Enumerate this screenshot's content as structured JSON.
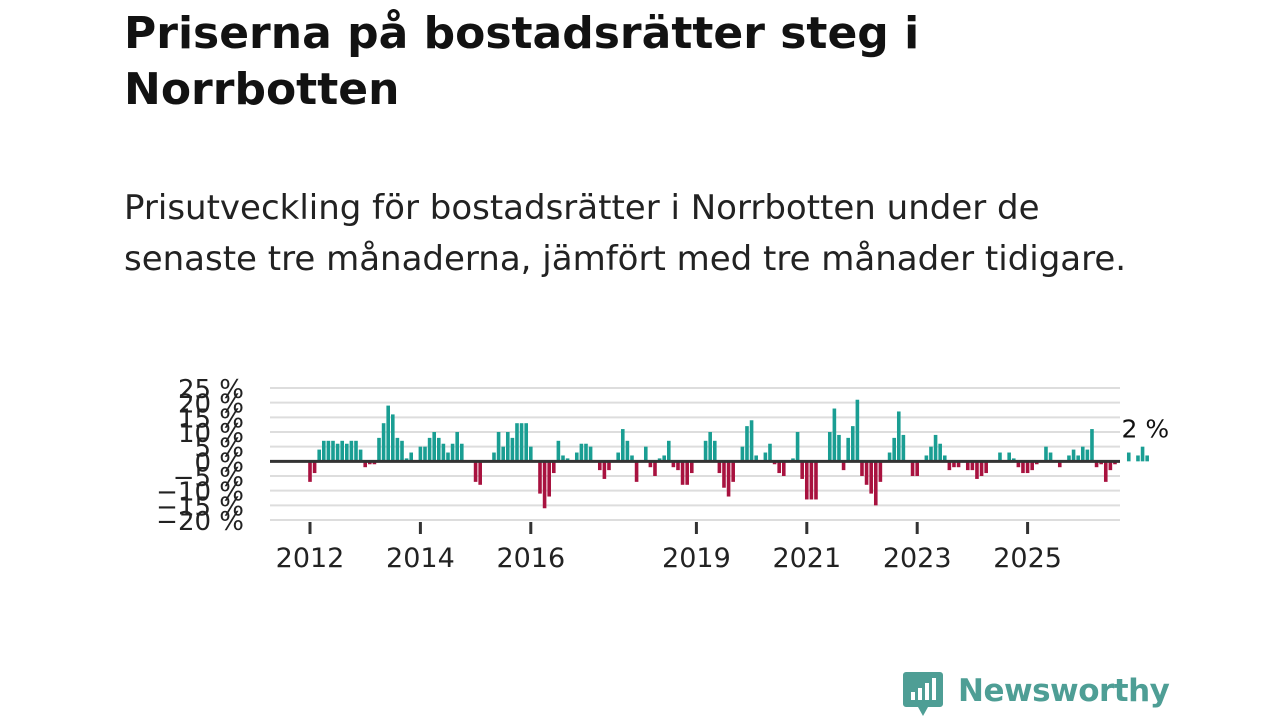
{
  "title": "Priserna på bostadsrätter steg i Norrbotten",
  "subtitle": "Prisutveckling för bostadsrätter i Norrbotten under de senaste tre månaderna, jämfört med tre månader tidigare.",
  "brand": {
    "name": "Newsworthy",
    "color": "#4e9e95"
  },
  "colors": {
    "positive": "#1a9e93",
    "negative": "#a8123f",
    "zero_line": "#333333",
    "grid": "#dddddd",
    "text": "#222222"
  },
  "chart_data": {
    "type": "bar",
    "title": "",
    "xlabel": "",
    "ylabel": "",
    "unit": "%",
    "ylim": [
      -20,
      25
    ],
    "y_ticks": [
      {
        "value": 25,
        "label": "25 %"
      },
      {
        "value": 20,
        "label": "20 %"
      },
      {
        "value": 15,
        "label": "15 %"
      },
      {
        "value": 10,
        "label": "10 %"
      },
      {
        "value": 5,
        "label": "5 %"
      },
      {
        "value": 0,
        "label": "0 %"
      },
      {
        "value": -5,
        "label": "−5 %"
      },
      {
        "value": -10,
        "label": "−10 %"
      },
      {
        "value": -15,
        "label": "−15 %"
      },
      {
        "value": -20,
        "label": "−20 %"
      }
    ],
    "x_ticks": [
      {
        "value": 2012,
        "label": "2012"
      },
      {
        "value": 2014,
        "label": "2014"
      },
      {
        "value": 2016,
        "label": "2016"
      },
      {
        "value": 2019,
        "label": "2019"
      },
      {
        "value": 2021,
        "label": "2021"
      },
      {
        "value": 2023,
        "label": "2023"
      },
      {
        "value": 2025,
        "label": "2025"
      }
    ],
    "x_start": 2012,
    "step": 0.08333,
    "values": [
      -7,
      -4,
      4,
      7,
      7,
      7,
      6,
      7,
      6,
      7,
      7,
      4,
      -2,
      -1,
      -1,
      8,
      13,
      19,
      16,
      8,
      7,
      1,
      3,
      0,
      5,
      5,
      8,
      10,
      8,
      6,
      3,
      6,
      10,
      6,
      0,
      0,
      -7,
      -8,
      0,
      0,
      3,
      10,
      5,
      10,
      8,
      13,
      13,
      13,
      5,
      0,
      -11,
      -16,
      -12,
      -4,
      7,
      2,
      1,
      0,
      3,
      6,
      6,
      5,
      0,
      -3,
      -6,
      -3,
      0,
      3,
      11,
      7,
      2,
      -7,
      0,
      5,
      -2,
      -5,
      1,
      2,
      7,
      -2,
      -3,
      -8,
      -8,
      -4,
      0,
      0,
      7,
      10,
      7,
      -4,
      -9,
      -12,
      -7,
      0,
      5,
      12,
      14,
      2,
      0,
      3,
      6,
      -1,
      -4,
      -5,
      0,
      1,
      10,
      -6,
      -13,
      -13,
      -13,
      0,
      0,
      10,
      18,
      9,
      -3,
      8,
      12,
      21,
      -5,
      -8,
      -11,
      -15,
      -7,
      0,
      3,
      8,
      17,
      9,
      0,
      -5,
      -5,
      0,
      2,
      5,
      9,
      6,
      2,
      -3,
      -2,
      -2,
      0,
      -3,
      -3,
      -6,
      -5,
      -4,
      0,
      0,
      3,
      0,
      3,
      1,
      -2,
      -4,
      -4,
      -3,
      -1,
      0,
      5,
      3,
      0,
      -2,
      0,
      2,
      4,
      2,
      5,
      4,
      11,
      -2,
      -1,
      -7,
      -3,
      -1,
      0,
      0,
      3,
      0,
      2,
      5,
      2
    ],
    "annotations": [
      {
        "label": "2 %",
        "value": 2
      }
    ]
  }
}
